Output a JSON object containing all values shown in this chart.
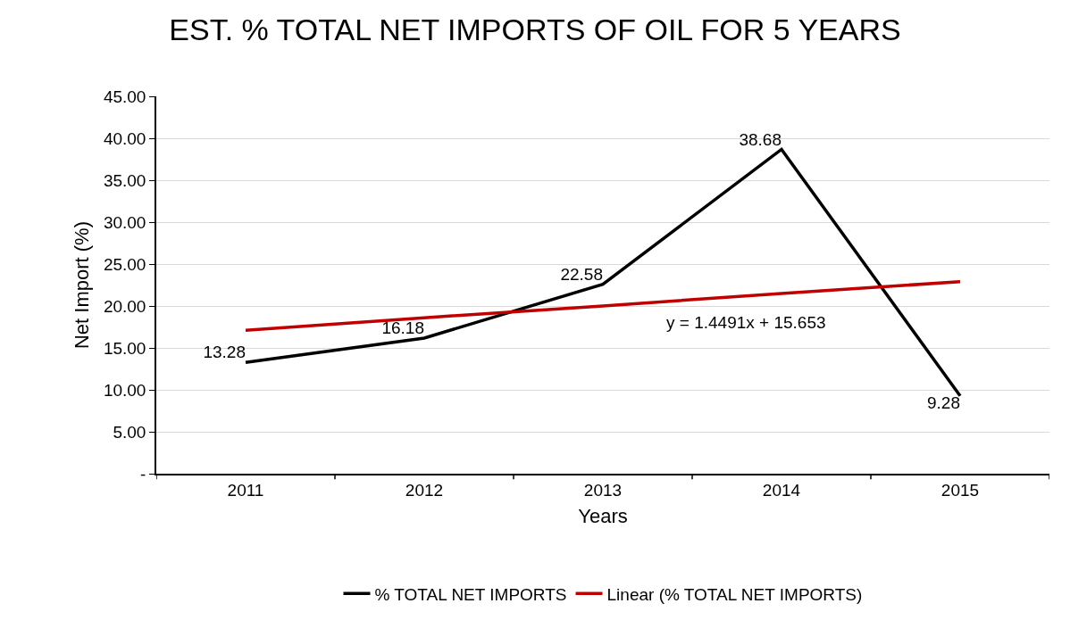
{
  "chart_data": {
    "type": "line",
    "title": "EST. % TOTAL NET IMPORTS OF OIL FOR 5 YEARS",
    "xlabel": "Years",
    "ylabel": "Net Import (%)",
    "categories": [
      "2011",
      "2012",
      "2013",
      "2014",
      "2015"
    ],
    "series": [
      {
        "name": "% TOTAL NET IMPORTS",
        "color": "#000000",
        "values": [
          13.28,
          16.18,
          22.58,
          38.68,
          9.28
        ],
        "value_labels": [
          "13.28",
          "16.18",
          "22.58",
          "38.68",
          "9.28"
        ]
      },
      {
        "name": "Linear (% TOTAL NET IMPORTS)",
        "color": "#c00000",
        "values": [
          17.1,
          18.6,
          20.0,
          21.5,
          22.9
        ]
      }
    ],
    "annotations": [
      "y = 1.4491x + 15.653"
    ],
    "ylim": [
      0,
      45
    ],
    "yticks": [
      {
        "value": 0,
        "label": "-"
      },
      {
        "value": 5,
        "label": "5.00"
      },
      {
        "value": 10,
        "label": "10.00"
      },
      {
        "value": 15,
        "label": "15.00"
      },
      {
        "value": 20,
        "label": "20.00"
      },
      {
        "value": 25,
        "label": "25.00"
      },
      {
        "value": 30,
        "label": "30.00"
      },
      {
        "value": 35,
        "label": "35.00"
      },
      {
        "value": 40,
        "label": "40.00"
      },
      {
        "value": 45,
        "label": "45.00"
      }
    ],
    "grid": "y",
    "legend": "bottom",
    "marker": "none",
    "line_style": "solid"
  }
}
